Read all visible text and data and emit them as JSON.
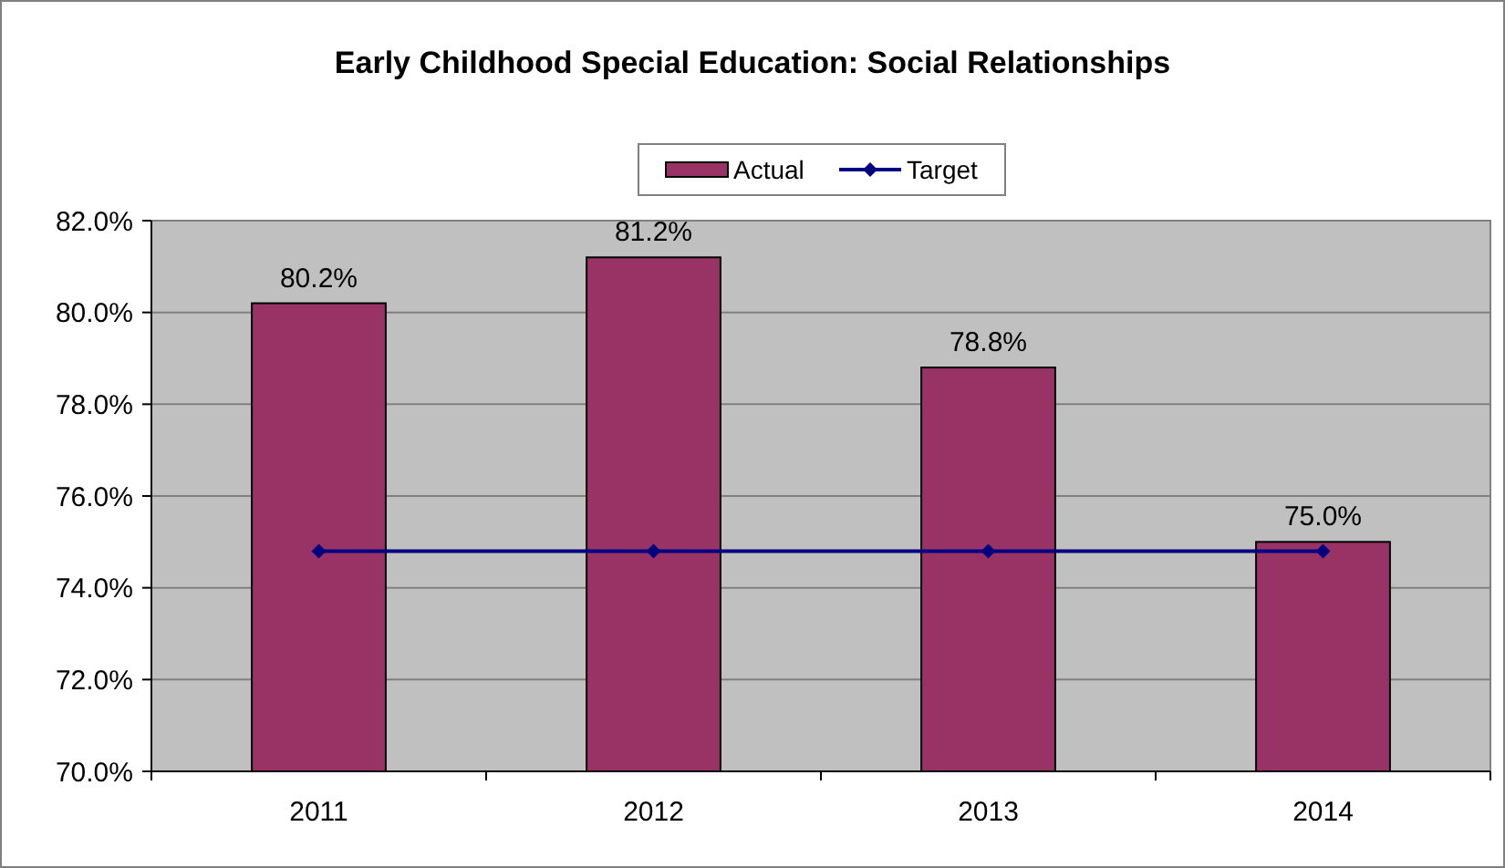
{
  "chart_data": {
    "type": "bar",
    "title": "Early Childhood Special Education: Social Relationships",
    "categories": [
      "2011",
      "2012",
      "2013",
      "2014"
    ],
    "series": [
      {
        "name": "Actual",
        "color": "#993366",
        "values": [
          80.2,
          81.2,
          78.8,
          75.0
        ],
        "value_labels": [
          "80.2%",
          "81.2%",
          "78.8%",
          "75.0%"
        ]
      },
      {
        "name": "Target",
        "type": "line",
        "color": "#000080",
        "values": [
          74.8,
          74.8,
          74.8,
          74.8
        ],
        "marker": "diamond"
      }
    ],
    "ylim": [
      70,
      82
    ],
    "yticks": [
      {
        "value": 70,
        "label": "70.0%"
      },
      {
        "value": 72,
        "label": "72.0%"
      },
      {
        "value": 74,
        "label": "74.0%"
      },
      {
        "value": 76,
        "label": "76.0%"
      },
      {
        "value": 78,
        "label": "78.0%"
      },
      {
        "value": 80,
        "label": "80.0%"
      },
      {
        "value": 82,
        "label": "82.0%"
      }
    ],
    "grid": "y",
    "legend": "top"
  }
}
